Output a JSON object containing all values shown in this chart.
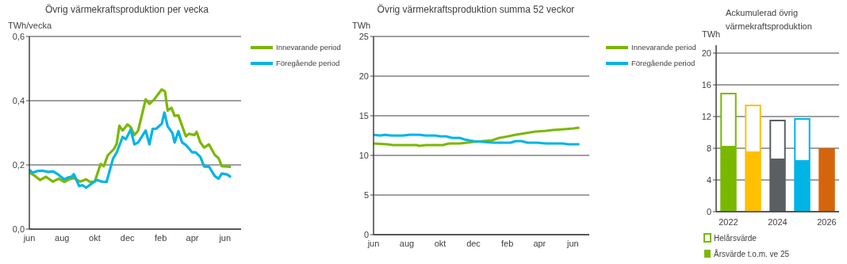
{
  "chart_data": [
    {
      "type": "line",
      "title": "Övrig värmekraftsproduktion  per vecka",
      "ylabel": "TWh/vecka",
      "xlim": [
        "2024-06-01",
        "2025-07-01"
      ],
      "xticks": [
        {
          "value": "2024-06-01",
          "label": "jun"
        },
        {
          "value": "2024-08-01",
          "label": "aug"
        },
        {
          "value": "2024-10-01",
          "label": "okt"
        },
        {
          "value": "2024-12-01",
          "label": "dec"
        },
        {
          "value": "2025-02-01",
          "label": "feb"
        },
        {
          "value": "2025-04-01",
          "label": "apr"
        },
        {
          "value": "2025-06-01",
          "label": "jun"
        }
      ],
      "ylim": [
        0,
        0.6
      ],
      "yticks": [
        {
          "value": 0,
          "label": "0,0"
        },
        {
          "value": 0.2,
          "label": "0,2"
        },
        {
          "value": 0.4,
          "label": "0,4"
        },
        {
          "value": 0.6,
          "label": "0,6"
        }
      ],
      "grid": "y",
      "legend": "right",
      "series": [
        {
          "name": "Innevarande period",
          "color": "#7ab800",
          "x": [
            "2024-06-01",
            "2024-06-12",
            "2024-06-21",
            "2024-07-02",
            "2024-07-15",
            "2024-07-26",
            "2024-08-05",
            "2024-08-14",
            "2024-08-23",
            "2024-09-04",
            "2024-09-15",
            "2024-09-22",
            "2024-10-01",
            "2024-10-12",
            "2024-10-18",
            "2024-10-25",
            "2024-11-06",
            "2024-11-11",
            "2024-11-16",
            "2024-11-22",
            "2024-12-01",
            "2024-12-07",
            "2024-12-14",
            "2024-12-21",
            "2025-01-04",
            "2025-01-11",
            "2025-01-20",
            "2025-02-03",
            "2025-02-09",
            "2025-02-14",
            "2025-02-21",
            "2025-02-27",
            "2025-03-06",
            "2025-03-20",
            "2025-03-26",
            "2025-04-05",
            "2025-04-09",
            "2025-04-16",
            "2025-04-23",
            "2025-05-02",
            "2025-05-13",
            "2025-05-20",
            "2025-05-26",
            "2025-06-12"
          ],
          "values": [
            0.176,
            0.165,
            0.153,
            0.163,
            0.148,
            0.157,
            0.147,
            0.155,
            0.159,
            0.148,
            0.155,
            0.147,
            0.148,
            0.203,
            0.196,
            0.229,
            0.25,
            0.266,
            0.322,
            0.307,
            0.326,
            0.318,
            0.293,
            0.307,
            0.404,
            0.39,
            0.404,
            0.435,
            0.429,
            0.369,
            0.378,
            0.353,
            0.354,
            0.289,
            0.297,
            0.293,
            0.303,
            0.27,
            0.254,
            0.264,
            0.231,
            0.221,
            0.196,
            0.194
          ]
        },
        {
          "name": "Föregående period",
          "color": "#00b4e6",
          "x": [
            "2024-06-01",
            "2024-06-07",
            "2024-06-16",
            "2024-06-25",
            "2024-07-06",
            "2024-07-15",
            "2024-07-24",
            "2024-08-05",
            "2024-08-14",
            "2024-08-18",
            "2024-08-23",
            "2024-09-02",
            "2024-09-08",
            "2024-09-15",
            "2024-09-24",
            "2024-10-05",
            "2024-10-14",
            "2024-10-23",
            "2024-11-04",
            "2024-11-11",
            "2024-11-22",
            "2024-11-28",
            "2024-12-07",
            "2024-12-14",
            "2024-12-21",
            "2025-01-04",
            "2025-01-11",
            "2025-01-17",
            "2025-01-24",
            "2025-02-03",
            "2025-02-08",
            "2025-02-14",
            "2025-02-23",
            "2025-02-27",
            "2025-03-06",
            "2025-03-13",
            "2025-03-20",
            "2025-04-01",
            "2025-04-07",
            "2025-04-16",
            "2025-04-23",
            "2025-05-02",
            "2025-05-06",
            "2025-05-13",
            "2025-05-20",
            "2025-05-26",
            "2025-06-05",
            "2025-06-12"
          ],
          "values": [
            0.185,
            0.176,
            0.181,
            0.182,
            0.178,
            0.18,
            0.171,
            0.155,
            0.162,
            0.162,
            0.171,
            0.134,
            0.137,
            0.129,
            0.14,
            0.153,
            0.148,
            0.147,
            0.219,
            0.239,
            0.287,
            0.28,
            0.31,
            0.264,
            0.27,
            0.307,
            0.264,
            0.312,
            0.313,
            0.328,
            0.363,
            0.32,
            0.299,
            0.27,
            0.305,
            0.27,
            0.262,
            0.239,
            0.239,
            0.225,
            0.195,
            0.195,
            0.184,
            0.165,
            0.157,
            0.173,
            0.17,
            0.162
          ]
        }
      ]
    },
    {
      "type": "line",
      "title": "Övrig värmekraftsproduktion  summa 52 veckor",
      "ylabel": "TWh",
      "xlim": [
        "2024-06-01",
        "2025-07-01"
      ],
      "xticks": [
        {
          "value": "2024-06-01",
          "label": "jun"
        },
        {
          "value": "2024-08-01",
          "label": "aug"
        },
        {
          "value": "2024-10-01",
          "label": "okt"
        },
        {
          "value": "2024-12-01",
          "label": "dec"
        },
        {
          "value": "2025-02-01",
          "label": "feb"
        },
        {
          "value": "2025-04-01",
          "label": "apr"
        },
        {
          "value": "2025-06-01",
          "label": "jun"
        }
      ],
      "ylim": [
        0,
        25
      ],
      "yticks": [
        0,
        5,
        10,
        15,
        20,
        25
      ],
      "grid": "y",
      "legend": "right",
      "series": [
        {
          "name": "Innevarande period",
          "color": "#7ab800",
          "x": [
            "2024-06-01",
            "2024-06-26",
            "2024-07-07",
            "2024-08-19",
            "2024-08-24",
            "2024-09-05",
            "2024-10-06",
            "2024-10-17",
            "2024-11-06",
            "2024-12-01",
            "2025-01-04",
            "2025-01-17",
            "2025-02-02",
            "2025-02-16",
            "2025-03-06",
            "2025-03-24",
            "2025-04-13",
            "2025-04-25",
            "2025-05-16",
            "2025-06-02",
            "2025-06-13"
          ],
          "values": [
            11.5,
            11.4,
            11.3,
            11.3,
            11.2,
            11.3,
            11.3,
            11.5,
            11.5,
            11.7,
            11.9,
            12.2,
            12.4,
            12.6,
            12.8,
            13.0,
            13.1,
            13.2,
            13.3,
            13.4,
            13.5
          ]
        },
        {
          "name": "Föregående period",
          "color": "#00b4e6",
          "x": [
            "2024-06-01",
            "2024-06-13",
            "2024-06-22",
            "2024-07-03",
            "2024-07-25",
            "2024-08-06",
            "2024-08-24",
            "2024-09-05",
            "2024-09-23",
            "2024-10-01",
            "2024-10-12",
            "2024-10-23",
            "2024-11-06",
            "2024-11-15",
            "2024-12-01",
            "2024-12-19",
            "2025-01-08",
            "2025-01-22",
            "2025-02-07",
            "2025-02-16",
            "2025-02-27",
            "2025-03-10",
            "2025-03-28",
            "2025-04-13",
            "2025-05-14",
            "2025-05-23",
            "2025-06-13"
          ],
          "values": [
            12.6,
            12.5,
            12.6,
            12.5,
            12.5,
            12.6,
            12.6,
            12.5,
            12.5,
            12.4,
            12.4,
            12.2,
            12.2,
            12.0,
            11.8,
            11.7,
            11.6,
            11.6,
            11.6,
            11.8,
            11.8,
            11.6,
            11.6,
            11.5,
            11.5,
            11.4,
            11.4
          ]
        }
      ]
    },
    {
      "type": "bar",
      "title": "Ackumulerad övrig värmekraftsproduktion",
      "ylabel": "TWh",
      "categories": [
        "2022",
        null,
        "2024",
        null,
        "2026"
      ],
      "ylim": [
        0,
        21
      ],
      "yticks": [
        0,
        4,
        8,
        12,
        16,
        20
      ],
      "grid": "y",
      "legend": "bottom",
      "stacked": true,
      "series": [
        {
          "name": "Årsvärde t.o.m. ve 25",
          "color": "#7ab800",
          "colors": [
            "#7ab800",
            "#ffc000",
            "#5a5f63",
            "#00b4e6",
            "#d4650c"
          ],
          "values": [
            8.1,
            7.4,
            6.5,
            6.3,
            8.0
          ]
        },
        {
          "name": "Helårsvärde",
          "color": "#7ab800",
          "colors": [
            "#7ab800",
            "#ffc000",
            "#5a5f63",
            "#00b4e6",
            null
          ],
          "values": [
            6.9,
            6.1,
            5.1,
            5.5,
            null
          ]
        }
      ]
    }
  ]
}
